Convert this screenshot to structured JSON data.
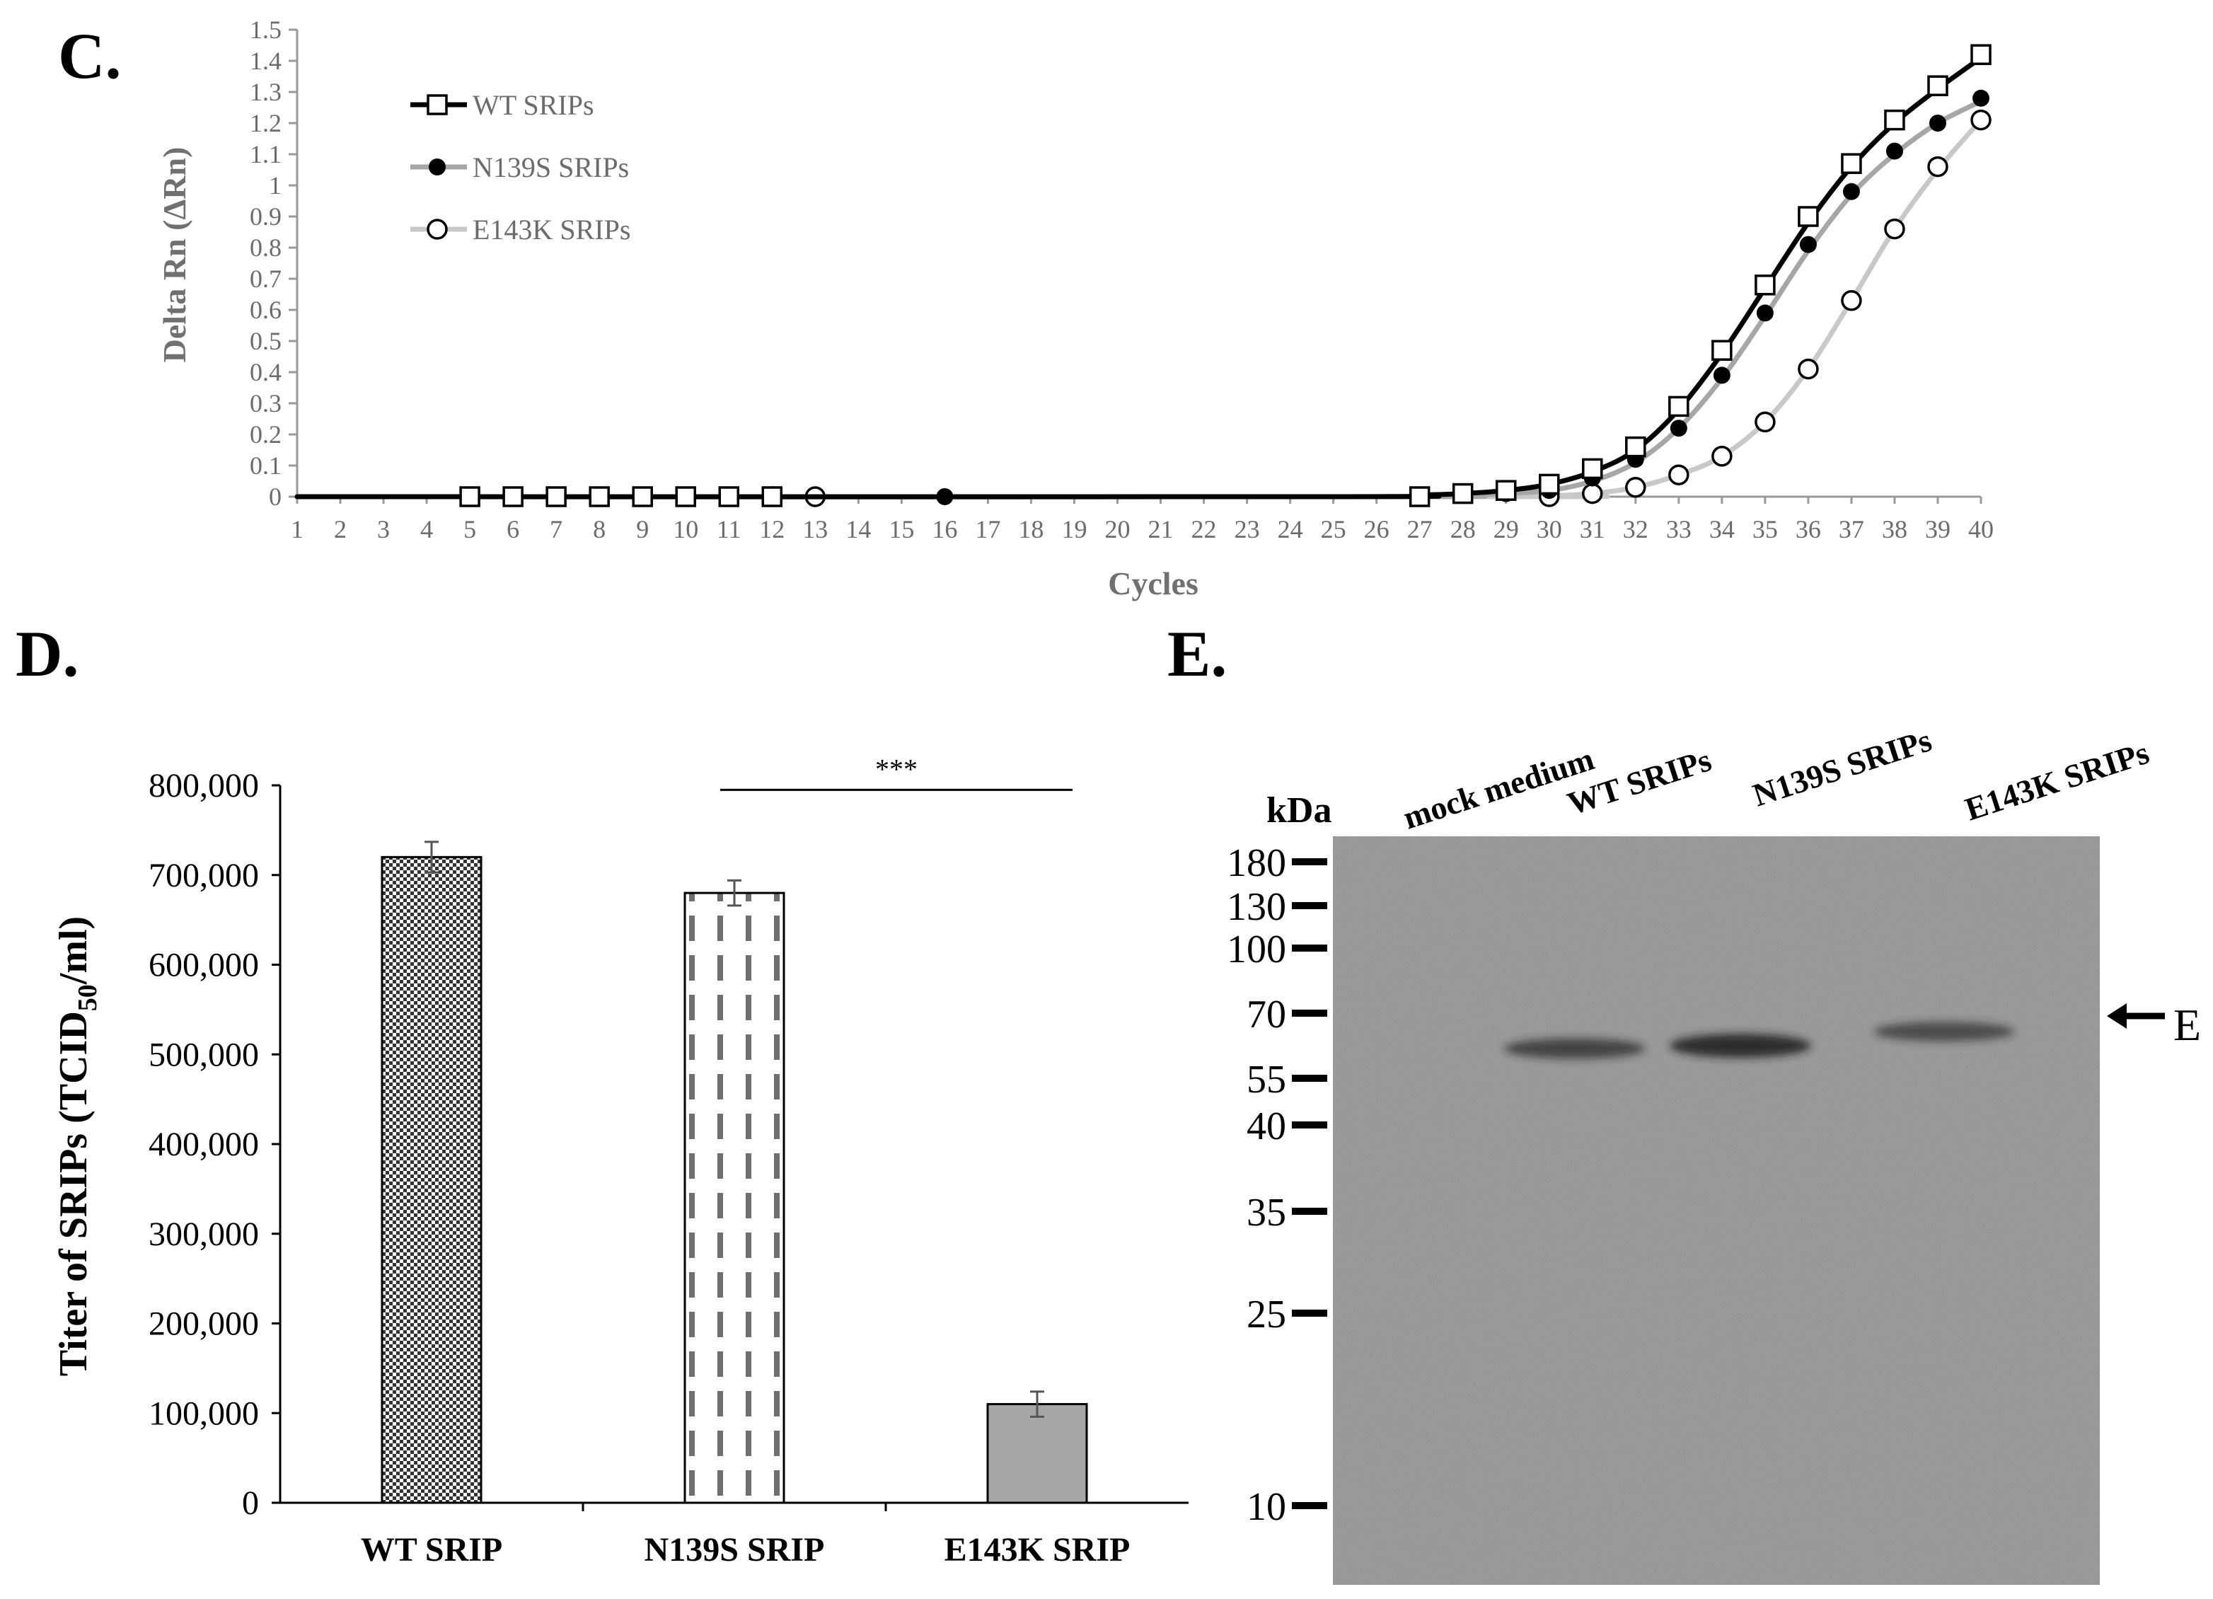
{
  "panels": {
    "c_label": "C.",
    "d_label": "D.",
    "e_label": "E."
  },
  "chart_data": [
    {
      "panel": "C.",
      "type": "line",
      "xlabel": "Cycles",
      "ylabel": "Delta Rn (ΔRn)",
      "xlim": [
        1,
        40
      ],
      "ylim": [
        0,
        1.5
      ],
      "x_ticks": [
        1,
        2,
        3,
        4,
        5,
        6,
        7,
        8,
        9,
        10,
        11,
        12,
        13,
        14,
        15,
        16,
        17,
        18,
        19,
        20,
        21,
        22,
        23,
        24,
        25,
        26,
        27,
        28,
        29,
        30,
        31,
        32,
        33,
        34,
        35,
        36,
        37,
        38,
        39,
        40
      ],
      "y_ticks": [
        0,
        0.1,
        0.2,
        0.3,
        0.4,
        0.5,
        0.6,
        0.7,
        0.8,
        0.9,
        1,
        1.1,
        1.2,
        1.3,
        1.4,
        1.5
      ],
      "y_tick_labels": [
        "0",
        "0.1",
        "0.2",
        "0.3",
        "0.4",
        "0.5",
        "0.6",
        "0.7",
        "0.8",
        "0.9",
        "1",
        "1.1",
        "1.2",
        "1.3",
        "1.4",
        "1.5"
      ],
      "grid": false,
      "legend_position": "top-left",
      "series": [
        {
          "name": "WT SRIPs",
          "marker": "open-square",
          "color": "#000000",
          "points": [
            [
              5,
              0
            ],
            [
              6,
              0
            ],
            [
              7,
              0
            ],
            [
              8,
              0
            ],
            [
              9,
              0
            ],
            [
              10,
              0
            ],
            [
              11,
              0
            ],
            [
              12,
              0
            ],
            [
              27,
              0
            ],
            [
              28,
              0.01
            ],
            [
              29,
              0.02
            ],
            [
              30,
              0.04
            ],
            [
              31,
              0.09
            ],
            [
              32,
              0.16
            ],
            [
              33,
              0.29
            ],
            [
              34,
              0.47
            ],
            [
              35,
              0.68
            ],
            [
              36,
              0.9
            ],
            [
              37,
              1.07
            ],
            [
              38,
              1.21
            ],
            [
              39,
              1.32
            ],
            [
              40,
              1.42
            ]
          ],
          "curve": [
            [
              1,
              0
            ],
            [
              25,
              0
            ],
            [
              27,
              0.005
            ],
            [
              28,
              0.01
            ],
            [
              29,
              0.02
            ],
            [
              30,
              0.04
            ],
            [
              31,
              0.08
            ],
            [
              32,
              0.15
            ],
            [
              33,
              0.28
            ],
            [
              34,
              0.46
            ],
            [
              35,
              0.67
            ],
            [
              36,
              0.88
            ],
            [
              37,
              1.06
            ],
            [
              38,
              1.2
            ],
            [
              39,
              1.31
            ],
            [
              40,
              1.41
            ]
          ]
        },
        {
          "name": "N139S SRIPs",
          "marker": "filled-circle",
          "color": "#a6a6a6",
          "points": [
            [
              8,
              0
            ],
            [
              9,
              0
            ],
            [
              10,
              0
            ],
            [
              16,
              0
            ],
            [
              29,
              0.01
            ],
            [
              30,
              0.02
            ],
            [
              31,
              0.06
            ],
            [
              32,
              0.12
            ],
            [
              33,
              0.22
            ],
            [
              34,
              0.39
            ],
            [
              35,
              0.59
            ],
            [
              36,
              0.81
            ],
            [
              37,
              0.98
            ],
            [
              38,
              1.11
            ],
            [
              39,
              1.2
            ],
            [
              40,
              1.28
            ]
          ],
          "curve": [
            [
              1,
              0
            ],
            [
              26,
              0
            ],
            [
              28,
              0.005
            ],
            [
              29,
              0.01
            ],
            [
              30,
              0.02
            ],
            [
              31,
              0.05
            ],
            [
              32,
              0.11
            ],
            [
              33,
              0.22
            ],
            [
              34,
              0.38
            ],
            [
              35,
              0.58
            ],
            [
              36,
              0.79
            ],
            [
              37,
              0.97
            ],
            [
              38,
              1.1
            ],
            [
              39,
              1.2
            ],
            [
              40,
              1.27
            ]
          ]
        },
        {
          "name": "E143K SRIPs",
          "marker": "open-circle",
          "color": "#c8c8c8",
          "points": [
            [
              12,
              0
            ],
            [
              13,
              0
            ],
            [
              30,
              0
            ],
            [
              31,
              0.01
            ],
            [
              32,
              0.03
            ],
            [
              33,
              0.07
            ],
            [
              34,
              0.13
            ],
            [
              35,
              0.24
            ],
            [
              36,
              0.41
            ],
            [
              37,
              0.63
            ],
            [
              38,
              0.86
            ],
            [
              39,
              1.06
            ],
            [
              40,
              1.21
            ]
          ],
          "curve": [
            [
              1,
              0
            ],
            [
              29,
              0
            ],
            [
              30,
              0.003
            ],
            [
              31,
              0.01
            ],
            [
              32,
              0.03
            ],
            [
              33,
              0.07
            ],
            [
              34,
              0.13
            ],
            [
              35,
              0.24
            ],
            [
              36,
              0.41
            ],
            [
              37,
              0.63
            ],
            [
              38,
              0.86
            ],
            [
              39,
              1.05
            ],
            [
              40,
              1.21
            ]
          ]
        }
      ]
    },
    {
      "panel": "D.",
      "type": "bar",
      "xlabel": "",
      "ylabel_main": "Titer of SRIPs (TCID",
      "ylabel_sub": "50",
      "ylabel_tail": "/ml)",
      "ylim": [
        0,
        800000
      ],
      "y_ticks": [
        0,
        100000,
        200000,
        300000,
        400000,
        500000,
        600000,
        700000,
        800000
      ],
      "y_tick_labels": [
        "0",
        "100,000",
        "200,000",
        "300,000",
        "400,000",
        "500,000",
        "600,000",
        "700,000",
        "800,000"
      ],
      "categories": [
        "WT SRIP",
        "N139S SRIP",
        "E143K SRIP"
      ],
      "values": [
        720000,
        680000,
        110000
      ],
      "errors": [
        17000,
        14000,
        14000
      ],
      "fills": [
        "checkered",
        "dashed-stripes",
        "solid-gray"
      ],
      "significance": {
        "from": "N139S SRIP",
        "to": "E143K SRIP",
        "label": "***",
        "value": 795000
      }
    }
  ],
  "blot": {
    "panel": "E.",
    "kda_label": "kDa",
    "markers": [
      "180",
      "130",
      "100",
      "70",
      "55",
      "40",
      "35",
      "25",
      "10"
    ],
    "lanes": [
      "mock medium",
      "WT SRIPs",
      "N139S SRIPs",
      "E143K SRIPs"
    ],
    "band_intensity": [
      0,
      0.55,
      0.85,
      0.45
    ],
    "arrow_label": "E",
    "colors": {
      "membrane": "#8c8c8c",
      "band": "#1a1a1a"
    }
  }
}
